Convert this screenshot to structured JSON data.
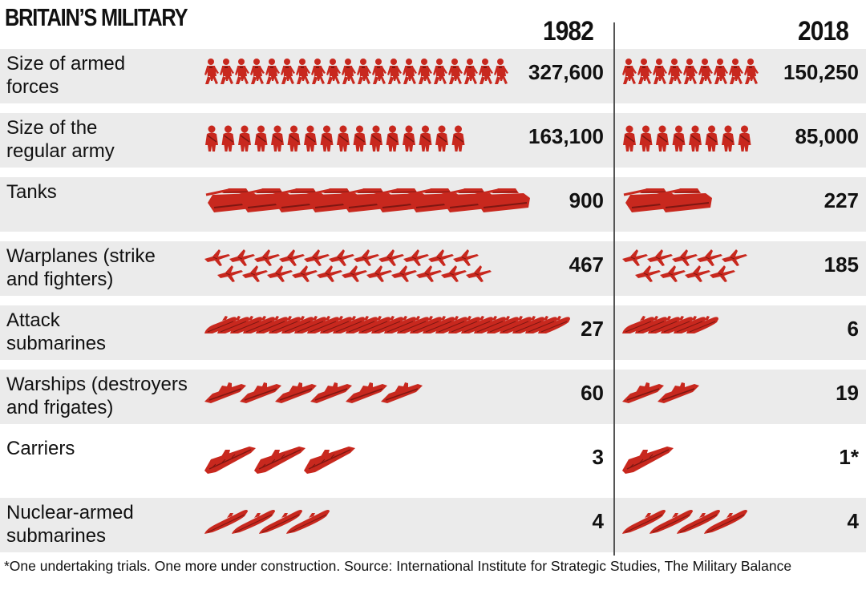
{
  "chart_data": {
    "type": "table",
    "title": "BRITAIN'S MILITARY",
    "columns": [
      "1982",
      "2018"
    ],
    "rows": [
      {
        "label": "Size of armed forces",
        "icon": "soldier-marching-icon",
        "values": [
          "327,600",
          "150,250"
        ],
        "numeric": [
          327600,
          150250
        ],
        "icons_shown": [
          20,
          9
        ]
      },
      {
        "label": "Size of the regular army",
        "icon": "soldier-icon",
        "values": [
          "163,100",
          "85,000"
        ],
        "numeric": [
          163100,
          85000
        ],
        "icons_shown": [
          16,
          8
        ]
      },
      {
        "label": "Tanks",
        "icon": "tank-icon",
        "values": [
          "900",
          "227"
        ],
        "numeric": [
          900,
          227
        ],
        "icons_shown": [
          9,
          2
        ]
      },
      {
        "label": "Warplanes (strike and fighters)",
        "icon": "warplane-icon",
        "values": [
          "467",
          "185"
        ],
        "numeric": [
          467,
          185
        ],
        "icons_shown": [
          22,
          9
        ]
      },
      {
        "label": "Attack submarines",
        "icon": "attack-submarine-icon",
        "values": [
          "27",
          "6"
        ],
        "numeric": [
          27,
          6
        ],
        "icons_shown": [
          27,
          6
        ]
      },
      {
        "label": "Warships (destroyers and frigates)",
        "icon": "warship-icon",
        "values": [
          "60",
          "19"
        ],
        "numeric": [
          60,
          19
        ],
        "icons_shown": [
          6,
          2
        ]
      },
      {
        "label": "Carriers",
        "icon": "carrier-icon",
        "values": [
          "3",
          "1*"
        ],
        "numeric": [
          3,
          1
        ],
        "icons_shown": [
          3,
          1
        ]
      },
      {
        "label": "Nuclear-armed submarines",
        "icon": "nuclear-submarine-icon",
        "values": [
          "4",
          "4"
        ],
        "numeric": [
          4,
          4
        ],
        "icons_shown": [
          4,
          4
        ]
      }
    ]
  },
  "row_labels": [
    "Size of armed\nforces",
    "Size of the\nregular army",
    "Tanks",
    "Warplanes (strike\nand fighters)",
    "Attack\nsubmarines",
    "Warships (destroyers\nand frigates)",
    "Carriers",
    "Nuclear-armed\nsubmarines"
  ],
  "title": "BRITAIN’S MILITARY",
  "footnote": "*One undertaking trials. One more under construction. Source: International Institute for Strategic Studies, The Military Balance",
  "colors": {
    "icon": "#c8281e",
    "icon_dark": "#7d1712",
    "row_shade": "#ebebeb"
  }
}
